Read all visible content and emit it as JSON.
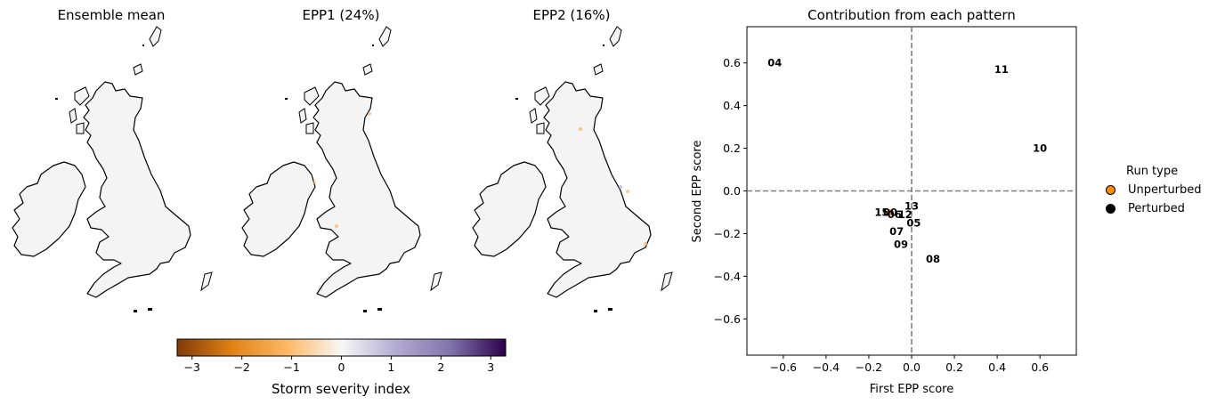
{
  "maps": [
    {
      "title": "Ensemble mean"
    },
    {
      "title": "EPP1 (24%)"
    },
    {
      "title": "EPP2 (16%)"
    }
  ],
  "colorbar": {
    "label": "Storm severity index",
    "ticks": [
      "−3",
      "−2",
      "−1",
      "0",
      "1",
      "2",
      "3"
    ],
    "range": [
      -3.3,
      3.3
    ],
    "colors": [
      "#7f3b08",
      "#e08214",
      "#fdb863",
      "#f7f7f7",
      "#b2abd2",
      "#8073ac",
      "#2d004b"
    ]
  },
  "chart_data": {
    "type": "scatter",
    "title": "Contribution from each pattern",
    "xlabel": "First EPP score",
    "ylabel": "Second EPP score",
    "xlim": [
      -0.77,
      0.77
    ],
    "ylim": [
      -0.77,
      0.77
    ],
    "xticks": [
      -0.6,
      -0.4,
      -0.2,
      0.0,
      0.2,
      0.4,
      0.6
    ],
    "yticks": [
      -0.6,
      -0.4,
      -0.2,
      0.0,
      0.2,
      0.4,
      0.6
    ],
    "xtick_labels": [
      "−0.6",
      "−0.4",
      "−0.2",
      "0.0",
      "0.2",
      "0.4",
      "0.6"
    ],
    "ytick_labels": [
      "−0.6",
      "−0.4",
      "−0.2",
      "0.0",
      "0.2",
      "0.4",
      "0.6"
    ],
    "reference_lines": {
      "x": 0,
      "y": 0,
      "style": "dashed",
      "color": "#808080"
    },
    "points": [
      {
        "label": "04",
        "x": -0.64,
        "y": 0.6,
        "type": "Perturbed"
      },
      {
        "label": "11",
        "x": 0.42,
        "y": 0.57,
        "type": "Perturbed"
      },
      {
        "label": "10",
        "x": 0.6,
        "y": 0.2,
        "type": "Perturbed"
      },
      {
        "label": "13",
        "x": 0.0,
        "y": -0.07,
        "type": "Perturbed"
      },
      {
        "label": "15",
        "x": -0.14,
        "y": -0.1,
        "type": "Perturbed"
      },
      {
        "label": "00",
        "x": -0.1,
        "y": -0.1,
        "type": "Unperturbed"
      },
      {
        "label": "06",
        "x": -0.08,
        "y": -0.11,
        "type": "Perturbed"
      },
      {
        "label": "12",
        "x": -0.03,
        "y": -0.11,
        "type": "Perturbed"
      },
      {
        "label": "05",
        "x": 0.01,
        "y": -0.15,
        "type": "Perturbed"
      },
      {
        "label": "07",
        "x": -0.07,
        "y": -0.19,
        "type": "Perturbed"
      },
      {
        "label": "09",
        "x": -0.05,
        "y": -0.25,
        "type": "Perturbed"
      },
      {
        "label": "08",
        "x": 0.1,
        "y": -0.32,
        "type": "Perturbed"
      }
    ],
    "legend": {
      "title": "Run type",
      "placement": "right",
      "entries": [
        {
          "name": "Unperturbed",
          "color": "#ff8c00"
        },
        {
          "name": "Perturbed",
          "color": "#000000"
        }
      ]
    }
  }
}
